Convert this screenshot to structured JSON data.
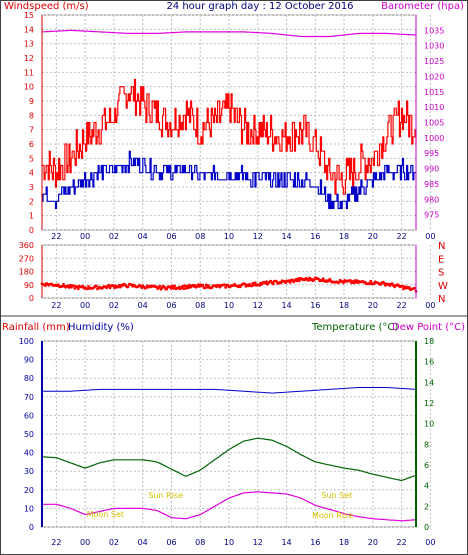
{
  "header": {
    "left_title": "Windspeed (m/s)",
    "center_title": "24 hour graph day : 12 October 2016",
    "right_title": "Barometer (hpa)"
  },
  "chart_data": [
    {
      "type": "line",
      "panel": "wind-and-barometer",
      "x_ticks": [
        "22",
        "00",
        "02",
        "04",
        "06",
        "08",
        "10",
        "12",
        "14",
        "16",
        "18",
        "20",
        "22",
        "00"
      ],
      "left_axis": {
        "label": "Windspeed (m/s)",
        "range": [
          0,
          15
        ],
        "ticks": [
          0,
          1,
          2,
          3,
          4,
          5,
          6,
          7,
          8,
          9,
          10,
          11,
          12,
          13,
          14,
          15
        ]
      },
      "right_axis": {
        "label": "Barometer (hpa)",
        "range": [
          970,
          1040
        ],
        "ticks": [
          975,
          980,
          985,
          990,
          995,
          1000,
          1005,
          1010,
          1015,
          1020,
          1025,
          1030,
          1035
        ]
      },
      "series": [
        {
          "axis": "left",
          "color": "#ff0000",
          "x": [
            0,
            1,
            2,
            3,
            4,
            5,
            6,
            7,
            8,
            9,
            10,
            11,
            12,
            13,
            14,
            15,
            16,
            17,
            18,
            19,
            20,
            21,
            22,
            23,
            24,
            25,
            26
          ],
          "y": [
            4.5,
            4.2,
            5.0,
            6.5,
            7.2,
            8.0,
            9.8,
            8.8,
            8.2,
            7.5,
            8.2,
            7.0,
            7.5,
            8.5,
            7.0,
            7.0,
            6.8,
            6.5,
            7.0,
            6.0,
            3.8,
            3.5,
            4.5,
            5.0,
            6.8,
            8.0,
            7.2
          ]
        },
        {
          "axis": "left",
          "color": "#0000c8",
          "x": [
            0,
            1,
            2,
            3,
            4,
            5,
            6,
            7,
            8,
            9,
            10,
            11,
            12,
            13,
            14,
            15,
            16,
            17,
            18,
            19,
            20,
            21,
            22,
            23,
            24,
            25,
            26
          ],
          "y": [
            2.5,
            2.2,
            3.0,
            3.5,
            4.0,
            4.2,
            4.8,
            4.5,
            4.2,
            4.0,
            4.3,
            3.8,
            3.8,
            4.0,
            3.8,
            3.5,
            3.5,
            3.5,
            3.5,
            3.2,
            2.0,
            1.8,
            2.8,
            3.5,
            4.0,
            4.2,
            4.0
          ]
        },
        {
          "axis": "right",
          "color": "#e000e0",
          "x": [
            0,
            2,
            4,
            6,
            8,
            10,
            12,
            14,
            16,
            18,
            20,
            22,
            24,
            26
          ],
          "y": [
            1034.5,
            1035,
            1034.5,
            1034,
            1034,
            1034.5,
            1034.5,
            1034.5,
            1034,
            1033,
            1033,
            1034,
            1034,
            1033.5
          ]
        }
      ]
    },
    {
      "type": "scatter",
      "panel": "wind-direction",
      "x_ticks": [
        "22",
        "00",
        "02",
        "04",
        "06",
        "08",
        "10",
        "12",
        "14",
        "16",
        "18",
        "20",
        "22",
        "00"
      ],
      "left_axis": {
        "range": [
          0,
          360
        ],
        "ticks": [
          0,
          90,
          180,
          270,
          360
        ]
      },
      "right_axis": {
        "ticks": [
          "N",
          "W",
          "S",
          "E",
          "N"
        ]
      },
      "series": [
        {
          "color": "#ff0000",
          "x": [
            0,
            1,
            2,
            3,
            4,
            5,
            6,
            7,
            8,
            9,
            10,
            11,
            12,
            13,
            14,
            15,
            16,
            17,
            18,
            19,
            20,
            21,
            22,
            23,
            24,
            25,
            26
          ],
          "y": [
            95,
            90,
            75,
            70,
            72,
            80,
            85,
            78,
            70,
            72,
            75,
            80,
            78,
            82,
            88,
            95,
            105,
            110,
            125,
            130,
            118,
            110,
            108,
            105,
            95,
            75,
            55
          ]
        }
      ]
    },
    {
      "type": "line",
      "panel": "rain-humidity-temperature",
      "x_ticks": [
        "22",
        "00",
        "02",
        "04",
        "06",
        "08",
        "10",
        "12",
        "14",
        "16",
        "18",
        "20",
        "22",
        "00"
      ],
      "left_labels": [
        "Rainfall (mm)",
        "Humidity (%)"
      ],
      "right_labels": [
        "Temperature (°C)",
        "Dew Point (°C)"
      ],
      "left_axis": {
        "range": [
          0,
          100
        ],
        "ticks": [
          0,
          10,
          20,
          30,
          40,
          50,
          60,
          70,
          80,
          90,
          100
        ]
      },
      "right_axis": {
        "range": [
          0,
          18
        ],
        "ticks": [
          0,
          2,
          4,
          6,
          8,
          10,
          12,
          14,
          16,
          18
        ]
      },
      "annotations": [
        "Moon Set",
        "Sun Rise",
        "Sun Set",
        "Moon Rise"
      ],
      "series": [
        {
          "axis": "left",
          "color": "#0000c8",
          "x": [
            0,
            2,
            4,
            6,
            8,
            10,
            12,
            14,
            16,
            18,
            20,
            22,
            24,
            26
          ],
          "y": [
            73,
            73,
            74,
            74,
            74,
            74,
            74,
            73,
            72,
            73,
            74,
            75,
            75,
            74
          ]
        },
        {
          "axis": "right",
          "color": "#006400",
          "x": [
            0,
            1,
            2,
            3,
            4,
            5,
            6,
            7,
            8,
            9,
            10,
            11,
            12,
            13,
            14,
            15,
            16,
            17,
            18,
            19,
            20,
            21,
            22,
            23,
            24,
            25,
            26
          ],
          "y": [
            6.8,
            6.7,
            6.2,
            5.7,
            6.2,
            6.5,
            6.5,
            6.5,
            6.3,
            5.6,
            4.9,
            5.5,
            6.5,
            7.5,
            8.3,
            8.6,
            8.4,
            7.8,
            7.0,
            6.3,
            6.0,
            5.7,
            5.5,
            5.1,
            4.8,
            4.5,
            5.0
          ]
        },
        {
          "axis": "right",
          "color": "#e000e0",
          "x": [
            0,
            1,
            2,
            3,
            4,
            5,
            6,
            7,
            8,
            9,
            10,
            11,
            12,
            13,
            14,
            15,
            16,
            17,
            18,
            19,
            20,
            21,
            22,
            23,
            24,
            25,
            26
          ],
          "y": [
            2.2,
            2.2,
            1.8,
            1.2,
            1.5,
            1.8,
            1.8,
            1.8,
            1.6,
            0.9,
            0.8,
            1.2,
            2.0,
            2.8,
            3.3,
            3.4,
            3.3,
            3.2,
            2.8,
            2.1,
            1.7,
            1.3,
            1.0,
            0.8,
            0.7,
            0.6,
            0.7
          ]
        }
      ]
    }
  ]
}
